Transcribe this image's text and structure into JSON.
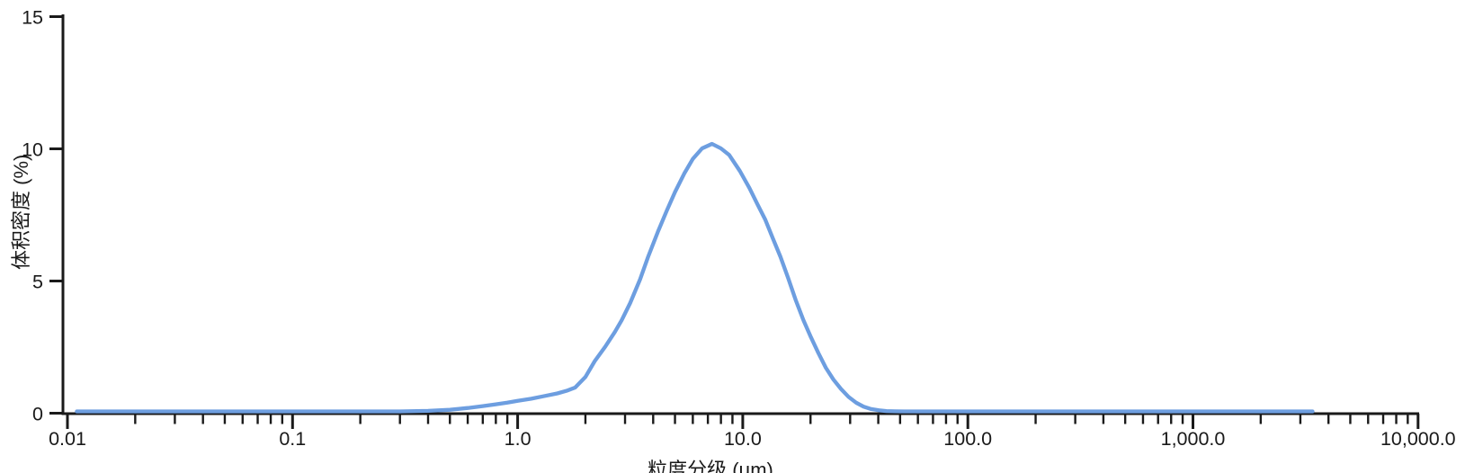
{
  "chart": {
    "title": "",
    "y_axis": {
      "label": "体积密度 (%)",
      "tick_labels": [
        "0",
        "5",
        "10",
        "15"
      ]
    },
    "x_axis": {
      "label": "粒度分级 (μm)",
      "tick_labels": [
        "0.01",
        "0.1",
        "1.0",
        "10.0",
        "100.0",
        "1,000.0",
        "10,000.0"
      ]
    }
  },
  "chart_data": {
    "type": "line",
    "title": "",
    "xlabel": "粒度分级 (μm)",
    "ylabel": "体积密度 (%)",
    "x_scale": "log",
    "xlim": [
      0.01,
      10000
    ],
    "ylim": [
      0,
      15
    ],
    "y_ticks": [
      0,
      5,
      10,
      15
    ],
    "x_tick_labels": [
      "0.01",
      "0.1",
      "1.0",
      "10.0",
      "100.0",
      "1,000.0",
      "10,000.0"
    ],
    "grid": false,
    "legend": "none",
    "color": "#6D9EE0",
    "axis_color": "#1a1a1a",
    "peak": {
      "x_um": 7.3,
      "y_percent": 10.1
    },
    "data_range_um": [
      0.011,
      3400
    ],
    "series": [
      {
        "name": "体积密度",
        "x": [
          0.011,
          0.1,
          0.2,
          0.3,
          0.4,
          0.5,
          0.6,
          0.7,
          0.8,
          0.9,
          1.0,
          1.15,
          1.3,
          1.5,
          1.65,
          1.8,
          2.0,
          2.2,
          2.45,
          2.7,
          2.9,
          3.16,
          3.5,
          3.8,
          4.2,
          4.6,
          5.0,
          5.5,
          6.0,
          6.6,
          7.3,
          8.0,
          8.7,
          9.7,
          10.7,
          11.6,
          12.6,
          13.6,
          14.7,
          15.9,
          17.2,
          18.6,
          20.1,
          21.7,
          23.4,
          25.3,
          27.3,
          29.5,
          31.9,
          34.4,
          37.2,
          40.3,
          43.5,
          47.5,
          52,
          60,
          80,
          150,
          500,
          1500,
          3400
        ],
        "y": [
          0,
          0,
          0,
          0,
          0.02,
          0.06,
          0.13,
          0.2,
          0.27,
          0.33,
          0.4,
          0.48,
          0.57,
          0.68,
          0.78,
          0.9,
          1.3,
          1.9,
          2.45,
          3.0,
          3.45,
          4.1,
          5.0,
          5.85,
          6.8,
          7.6,
          8.3,
          9.0,
          9.55,
          9.95,
          10.12,
          9.95,
          9.7,
          9.1,
          8.45,
          7.85,
          7.25,
          6.55,
          5.85,
          5.05,
          4.2,
          3.45,
          2.8,
          2.2,
          1.65,
          1.2,
          0.85,
          0.55,
          0.33,
          0.18,
          0.09,
          0.04,
          0.015,
          0.005,
          0,
          0,
          0,
          0,
          0,
          0,
          0
        ]
      }
    ]
  }
}
